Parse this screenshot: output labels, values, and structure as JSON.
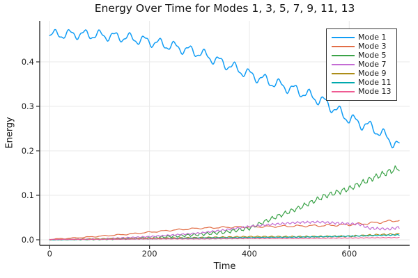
{
  "chart_data": {
    "type": "line",
    "title": "Energy Over Time for Modes 1, 3, 5, 7, 9, 11, 13",
    "xlabel": "Time",
    "ylabel": "Energy",
    "xlim": [
      -20,
      721
    ],
    "ylim": [
      -0.0125,
      0.4922
    ],
    "xticks": [
      0,
      200,
      400,
      600
    ],
    "xtick_labels": [
      "0",
      "200",
      "400",
      "600"
    ],
    "yticks": [
      0.0,
      0.1,
      0.2,
      0.3,
      0.4
    ],
    "ytick_labels": [
      "0.0",
      "0.1",
      "0.2",
      "0.3",
      "0.4"
    ],
    "grid": true,
    "legend_position": "top-right",
    "axis_color": "#2f2f2f",
    "grid_color": "#e8e8e8",
    "tick_label_color": "#1c1c1c",
    "series": [
      {
        "name": "Mode 1",
        "color": "#119DF5",
        "width": 1.5,
        "x": [
          0,
          50,
          100,
          150,
          200,
          250,
          300,
          350,
          400,
          450,
          500,
          550,
          600,
          650,
          700
        ],
        "y": [
          0.461,
          0.4625,
          0.46,
          0.455,
          0.446,
          0.434,
          0.42,
          0.396,
          0.372,
          0.352,
          0.334,
          0.31,
          0.272,
          0.25,
          0.21
        ],
        "osc": {
          "amp0": 0.012,
          "amp1": 0.015,
          "period": 30,
          "phase": 2.5
        }
      },
      {
        "name": "Mode 3",
        "color": "#E26E47",
        "width": 1.2,
        "x": [
          0,
          50,
          100,
          150,
          200,
          250,
          300,
          350,
          400,
          450,
          500,
          550,
          600,
          650,
          700
        ],
        "y": [
          0.001,
          0.004,
          0.008,
          0.012,
          0.017,
          0.022,
          0.026,
          0.028,
          0.029,
          0.03,
          0.031,
          0.032,
          0.034,
          0.038,
          0.044
        ],
        "osc": {
          "amp0": 0.001,
          "amp1": 0.003,
          "period": 30,
          "phase": 10
        }
      },
      {
        "name": "Mode 5",
        "color": "#3BA348",
        "width": 1.2,
        "x": [
          0,
          100,
          200,
          250,
          300,
          350,
          400,
          450,
          500,
          550,
          600,
          650,
          700
        ],
        "y": [
          0.0,
          0.001,
          0.004,
          0.008,
          0.012,
          0.017,
          0.026,
          0.05,
          0.072,
          0.098,
          0.115,
          0.14,
          0.162
        ],
        "osc": {
          "amp0": 0.0005,
          "amp1": 0.008,
          "period": 13,
          "phase": 0
        }
      },
      {
        "name": "Mode 7",
        "color": "#C46CD4",
        "width": 1.2,
        "x": [
          0,
          100,
          200,
          250,
          300,
          350,
          400,
          450,
          500,
          540,
          580,
          620,
          640,
          680,
          700
        ],
        "y": [
          0.0,
          0.002,
          0.007,
          0.011,
          0.015,
          0.022,
          0.03,
          0.035,
          0.039,
          0.04,
          0.037,
          0.035,
          0.026,
          0.024,
          0.028
        ],
        "osc": {
          "amp0": 0.0008,
          "amp1": 0.0035,
          "period": 10,
          "phase": 4
        }
      },
      {
        "name": "Mode 9",
        "color": "#AC8D18",
        "width": 1.2,
        "x": [
          0,
          100,
          200,
          300,
          400,
          500,
          600,
          650,
          700
        ],
        "y": [
          0.0,
          0.002,
          0.003,
          0.005,
          0.007,
          0.007,
          0.008,
          0.011,
          0.013
        ],
        "osc": {
          "amp0": 0.0006,
          "amp1": 0.002,
          "period": 14,
          "phase": 7
        }
      },
      {
        "name": "Mode 11",
        "color": "#00A9AD",
        "width": 1.2,
        "x": [
          0,
          100,
          200,
          300,
          400,
          500,
          600,
          700
        ],
        "y": [
          0.0,
          0.001,
          0.002,
          0.004,
          0.005,
          0.006,
          0.008,
          0.011
        ],
        "osc": {
          "amp0": 0.0004,
          "amp1": 0.0012,
          "period": 9,
          "phase": 1
        }
      },
      {
        "name": "Mode 13",
        "color": "#EF5B92",
        "width": 1.2,
        "x": [
          0,
          100,
          200,
          300,
          400,
          500,
          600,
          700
        ],
        "y": [
          0.001,
          0.001,
          0.002,
          0.002,
          0.003,
          0.003,
          0.004,
          0.005
        ],
        "osc": {
          "amp0": 0.0003,
          "amp1": 0.0008,
          "period": 11,
          "phase": 5
        }
      }
    ]
  }
}
